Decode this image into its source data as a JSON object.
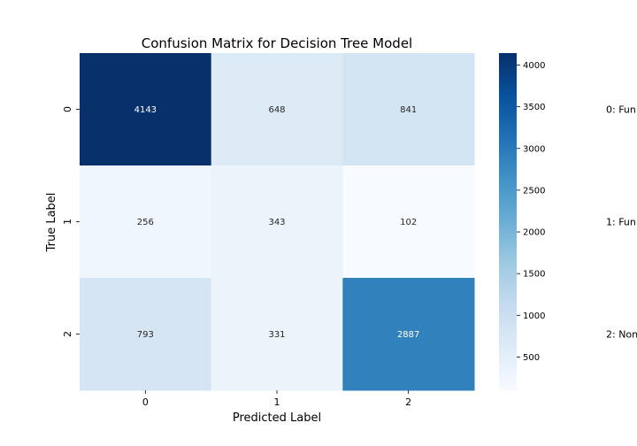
{
  "chart_data": {
    "type": "heatmap",
    "title": "Confusion Matrix for Decision Tree Model",
    "xlabel": "Predicted Label",
    "ylabel": "True Label",
    "x_categories": [
      "0",
      "1",
      "2"
    ],
    "y_categories": [
      "0",
      "1",
      "2"
    ],
    "values": [
      [
        4143,
        648,
        841
      ],
      [
        256,
        343,
        102
      ],
      [
        793,
        331,
        2887
      ]
    ],
    "colormap": "Blues",
    "colorbar": {
      "range": [
        102,
        4143
      ],
      "ticks": [
        500,
        1000,
        1500,
        2000,
        2500,
        3000,
        3500,
        4000
      ]
    },
    "side_labels": [
      "0: Fun",
      "1: Fun",
      "2: Non"
    ]
  }
}
